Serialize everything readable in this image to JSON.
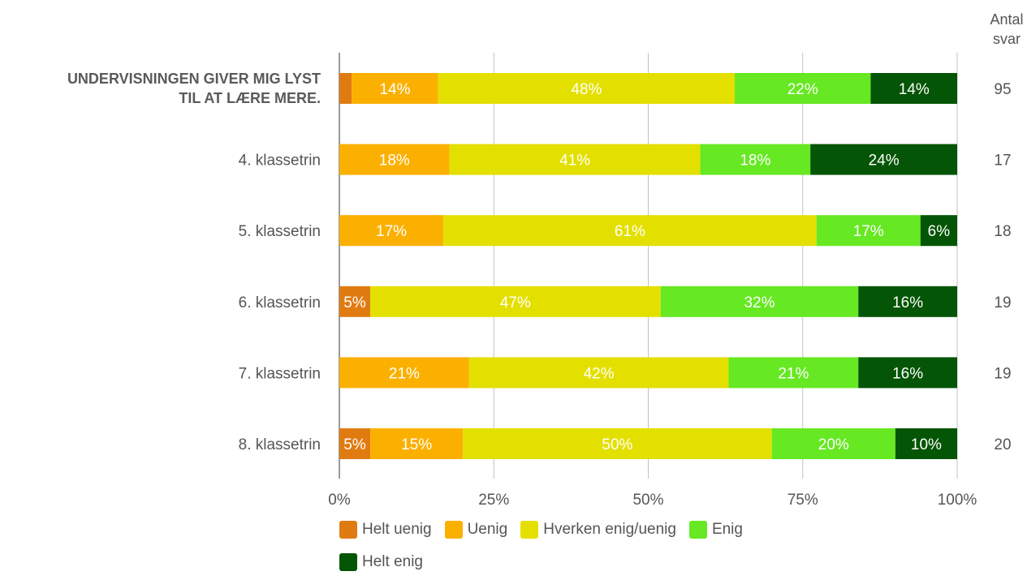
{
  "chart_data": {
    "type": "bar",
    "orientation": "horizontal",
    "stacked": true,
    "percent": true,
    "categories": [
      "UNDERVISNINGEN GIVER MIG LYST TIL AT LÆRE MERE.",
      "4. klassetrin",
      "5. klassetrin",
      "6. klassetrin",
      "7. klassetrin",
      "8. klassetrin"
    ],
    "category_title_lines": [
      "UNDERVISNINGEN GIVER MIG LYST",
      "TIL AT LÆRE MERE."
    ],
    "series": [
      {
        "name": "Helt uenig",
        "color": "#e07b12",
        "label_color": "#ffffff",
        "values": [
          2,
          0,
          0,
          5,
          0,
          5
        ],
        "labels": [
          "",
          "",
          "",
          "5%",
          "",
          "5%"
        ]
      },
      {
        "name": "Uenig",
        "color": "#fbb000",
        "label_color": "#ffffff",
        "values": [
          14,
          18,
          17,
          0,
          21,
          15
        ],
        "labels": [
          "14%",
          "18%",
          "17%",
          "",
          "21%",
          "15%"
        ]
      },
      {
        "name": "Hverken enig/uenig",
        "color": "#e3e000",
        "label_color": "#ffffff",
        "values": [
          48,
          41,
          61,
          47,
          42,
          50
        ],
        "labels": [
          "48%",
          "41%",
          "61%",
          "47%",
          "42%",
          "50%"
        ]
      },
      {
        "name": "Enig",
        "color": "#66e822",
        "label_color": "#ffffff",
        "values": [
          22,
          18,
          17,
          32,
          21,
          20
        ],
        "labels": [
          "22%",
          "18%",
          "17%",
          "32%",
          "21%",
          "20%"
        ]
      },
      {
        "name": "Helt enig",
        "color": "#045505",
        "label_color": "#ffffff",
        "values": [
          14,
          24,
          6,
          16,
          16,
          10
        ],
        "labels": [
          "14%",
          "24%",
          "6%",
          "16%",
          "16%",
          "10%"
        ]
      }
    ],
    "counts_header": [
      "Antal",
      "svar"
    ],
    "counts": [
      "95",
      "17",
      "18",
      "19",
      "19",
      "20"
    ],
    "x_ticks": [
      "0%",
      "25%",
      "50%",
      "75%",
      "100%"
    ],
    "xlim": [
      0,
      100
    ],
    "grid": true,
    "legend_position": "bottom"
  }
}
